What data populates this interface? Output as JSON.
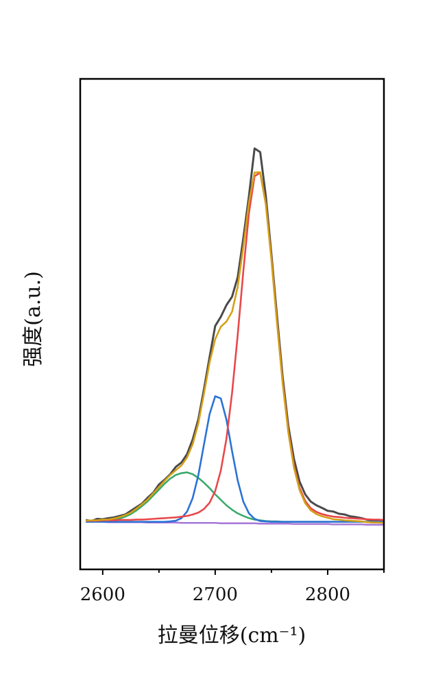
{
  "chart_data": {
    "type": "line",
    "xlabel": "拉曼位移(cm⁻¹)",
    "ylabel": "强度(a.u.)",
    "xlim": [
      2580,
      2850
    ],
    "xticks": [
      2600,
      2700,
      2800
    ],
    "xminorticks": [
      2650,
      2750,
      2850
    ],
    "ylim": [
      -0.13,
      1.21
    ],
    "x": [
      2585,
      2590,
      2595,
      2600,
      2605,
      2610,
      2615,
      2620,
      2625,
      2630,
      2635,
      2640,
      2645,
      2650,
      2655,
      2660,
      2665,
      2670,
      2675,
      2680,
      2685,
      2690,
      2695,
      2700,
      2705,
      2710,
      2715,
      2720,
      2725,
      2730,
      2735,
      2740,
      2745,
      2750,
      2755,
      2760,
      2765,
      2770,
      2775,
      2780,
      2785,
      2790,
      2795,
      2800,
      2805,
      2810,
      2815,
      2820,
      2825,
      2830,
      2835,
      2840,
      2845,
      2850
    ],
    "series": [
      {
        "color": "#4a4a4a",
        "values": [
          0.005,
          0.002,
          0.008,
          0.007,
          0.01,
          0.012,
          0.016,
          0.02,
          0.03,
          0.04,
          0.05,
          0.066,
          0.08,
          0.102,
          0.115,
          0.13,
          0.15,
          0.162,
          0.185,
          0.225,
          0.28,
          0.362,
          0.45,
          0.535,
          0.56,
          0.592,
          0.615,
          0.668,
          0.775,
          0.89,
          1.02,
          1.01,
          0.89,
          0.73,
          0.56,
          0.395,
          0.262,
          0.172,
          0.11,
          0.075,
          0.055,
          0.045,
          0.038,
          0.03,
          0.028,
          0.022,
          0.02,
          0.015,
          0.013,
          0.01,
          0.006,
          0.004,
          0.003,
          0.001
        ]
      },
      {
        "color": "#a678d8",
        "values": [
          0,
          0,
          0,
          0,
          -0.001,
          -0.001,
          -0.001,
          -0.001,
          -0.001,
          -0.001,
          -0.001,
          -0.002,
          -0.002,
          -0.002,
          -0.002,
          -0.002,
          -0.002,
          -0.003,
          -0.003,
          -0.003,
          -0.003,
          -0.003,
          -0.003,
          -0.003,
          -0.004,
          -0.004,
          -0.004,
          -0.004,
          -0.004,
          -0.004,
          -0.004,
          -0.005,
          -0.005,
          -0.005,
          -0.005,
          -0.005,
          -0.005,
          -0.006,
          -0.006,
          -0.006,
          -0.006,
          -0.006,
          -0.006,
          -0.006,
          -0.007,
          -0.007,
          -0.007,
          -0.007,
          -0.007,
          -0.007,
          -0.008,
          -0.008,
          -0.008,
          -0.008
        ]
      },
      {
        "color": "#3aaa6a",
        "values": [
          0,
          0.001,
          0.001,
          0.002,
          0.003,
          0.006,
          0.009,
          0.014,
          0.021,
          0.031,
          0.043,
          0.056,
          0.072,
          0.088,
          0.104,
          0.118,
          0.128,
          0.133,
          0.135,
          0.13,
          0.12,
          0.107,
          0.092,
          0.075,
          0.06,
          0.045,
          0.033,
          0.023,
          0.016,
          0.01,
          0.006,
          0.004,
          0.002,
          0.001,
          0.001,
          0,
          0,
          0,
          0,
          0,
          0,
          0,
          0,
          0,
          0,
          0,
          0,
          0,
          0,
          0,
          0,
          0,
          0,
          0
        ]
      },
      {
        "color": "#2a72d6",
        "values": [
          0,
          0,
          0,
          0,
          0,
          0,
          0,
          0,
          0,
          0,
          0,
          0,
          0,
          0,
          0,
          0.001,
          0.003,
          0.01,
          0.028,
          0.065,
          0.127,
          0.211,
          0.294,
          0.343,
          0.337,
          0.279,
          0.193,
          0.113,
          0.055,
          0.023,
          0.008,
          0.002,
          0.001,
          0,
          0,
          0,
          0,
          0,
          0,
          0,
          0,
          0,
          0,
          0,
          0,
          0,
          0,
          0,
          0,
          0,
          0,
          0,
          0,
          0
        ]
      },
      {
        "color": "#e8474a",
        "values": [
          0.003,
          0.003,
          0.003,
          0.004,
          0.004,
          0.004,
          0.005,
          0.005,
          0.005,
          0.006,
          0.006,
          0.007,
          0.008,
          0.009,
          0.01,
          0.011,
          0.012,
          0.014,
          0.016,
          0.02,
          0.025,
          0.035,
          0.052,
          0.084,
          0.14,
          0.227,
          0.352,
          0.51,
          0.684,
          0.843,
          0.944,
          0.954,
          0.869,
          0.719,
          0.545,
          0.382,
          0.249,
          0.154,
          0.093,
          0.057,
          0.037,
          0.027,
          0.021,
          0.017,
          0.014,
          0.013,
          0.011,
          0.01,
          0.009,
          0.008,
          0.007,
          0.006,
          0.006,
          0.005
        ]
      },
      {
        "color": "#d4a017",
        "values": [
          0.003,
          0.004,
          0.004,
          0.006,
          0.006,
          0.009,
          0.013,
          0.018,
          0.025,
          0.036,
          0.048,
          0.061,
          0.078,
          0.095,
          0.112,
          0.128,
          0.141,
          0.154,
          0.176,
          0.212,
          0.269,
          0.35,
          0.435,
          0.499,
          0.533,
          0.547,
          0.574,
          0.642,
          0.751,
          0.872,
          0.954,
          0.955,
          0.867,
          0.715,
          0.541,
          0.377,
          0.244,
          0.148,
          0.087,
          0.051,
          0.031,
          0.021,
          0.015,
          0.011,
          0.007,
          0.006,
          0.004,
          0.003,
          0.002,
          0.001,
          -0.001,
          -0.002,
          -0.002,
          -0.003
        ]
      }
    ]
  }
}
